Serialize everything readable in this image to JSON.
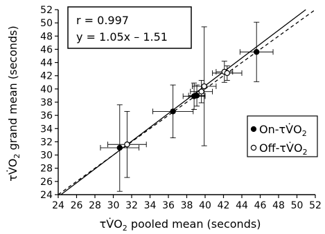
{
  "chart_data": {
    "type": "scatter",
    "title": "",
    "xlabel": "τV̇O₂ pooled mean (seconds)",
    "ylabel": "τV̇O₂ grand mean (seconds)",
    "xlim": [
      24,
      52
    ],
    "ylim": [
      24,
      52
    ],
    "xticks": [
      24,
      26,
      28,
      30,
      32,
      34,
      36,
      38,
      40,
      42,
      44,
      46,
      48,
      50,
      52
    ],
    "yticks": [
      24,
      26,
      28,
      30,
      32,
      34,
      36,
      38,
      40,
      42,
      44,
      46,
      48,
      50,
      52
    ],
    "grid": false,
    "legend_position": "right",
    "annotations": {
      "r_text": "r = 0.997",
      "eq_text": "y = 1.05x – 1.51"
    },
    "lines": {
      "fit": {
        "slope": 1.05,
        "intercept": -1.51,
        "style": "solid"
      },
      "identity": {
        "slope": 1,
        "intercept": 0,
        "style": "dashed"
      }
    },
    "series": [
      {
        "name": "On-τV̇O₂",
        "marker": "filled-circle",
        "points": [
          {
            "x": 30.7,
            "y": 31.1,
            "xerr": 2.1,
            "yerr_up": 6.5,
            "yerr_down": 6.6
          },
          {
            "x": 36.5,
            "y": 36.6,
            "xerr": 2.2,
            "yerr_up": 4.0,
            "yerr_down": 4.0
          },
          {
            "x": 38.8,
            "y": 38.9,
            "xerr": 1.2,
            "yerr_up": 2.0,
            "yerr_down": 2.0
          },
          {
            "x": 39.1,
            "y": 39.0,
            "xerr": 0.9,
            "yerr_up": 1.6,
            "yerr_down": 1.6
          },
          {
            "x": 45.6,
            "y": 45.6,
            "xerr": 1.8,
            "yerr_up": 4.5,
            "yerr_down": 4.5
          }
        ]
      },
      {
        "name": "Off-τV̇O₂",
        "marker": "open-circle",
        "points": [
          {
            "x": 31.5,
            "y": 31.6,
            "xerr": 2.1,
            "yerr_up": 5.0,
            "yerr_down": 5.0
          },
          {
            "x": 39.6,
            "y": 39.6,
            "xerr": 1.2,
            "yerr_up": 1.7,
            "yerr_down": 1.7
          },
          {
            "x": 39.9,
            "y": 40.4,
            "xerr": 1.3,
            "yerr_up": 9.0,
            "yerr_down": 9.0
          },
          {
            "x": 42.1,
            "y": 42.6,
            "xerr": 0.9,
            "yerr_up": 1.6,
            "yerr_down": 1.6
          },
          {
            "x": 42.4,
            "y": 42.4,
            "xerr": 1.6,
            "yerr_up": 1.1,
            "yerr_down": 1.1
          }
        ]
      }
    ]
  },
  "legend": {
    "on_prefix": "On-τV̇O",
    "off_prefix": "Off-τV̇O",
    "subscript": "2"
  },
  "axis_titles": {
    "x_prefix": "τV̇O",
    "x_suffix": " pooled mean (seconds)",
    "y_prefix": "τV̇O",
    "y_suffix": " grand mean (seconds)",
    "subscript": "2"
  }
}
